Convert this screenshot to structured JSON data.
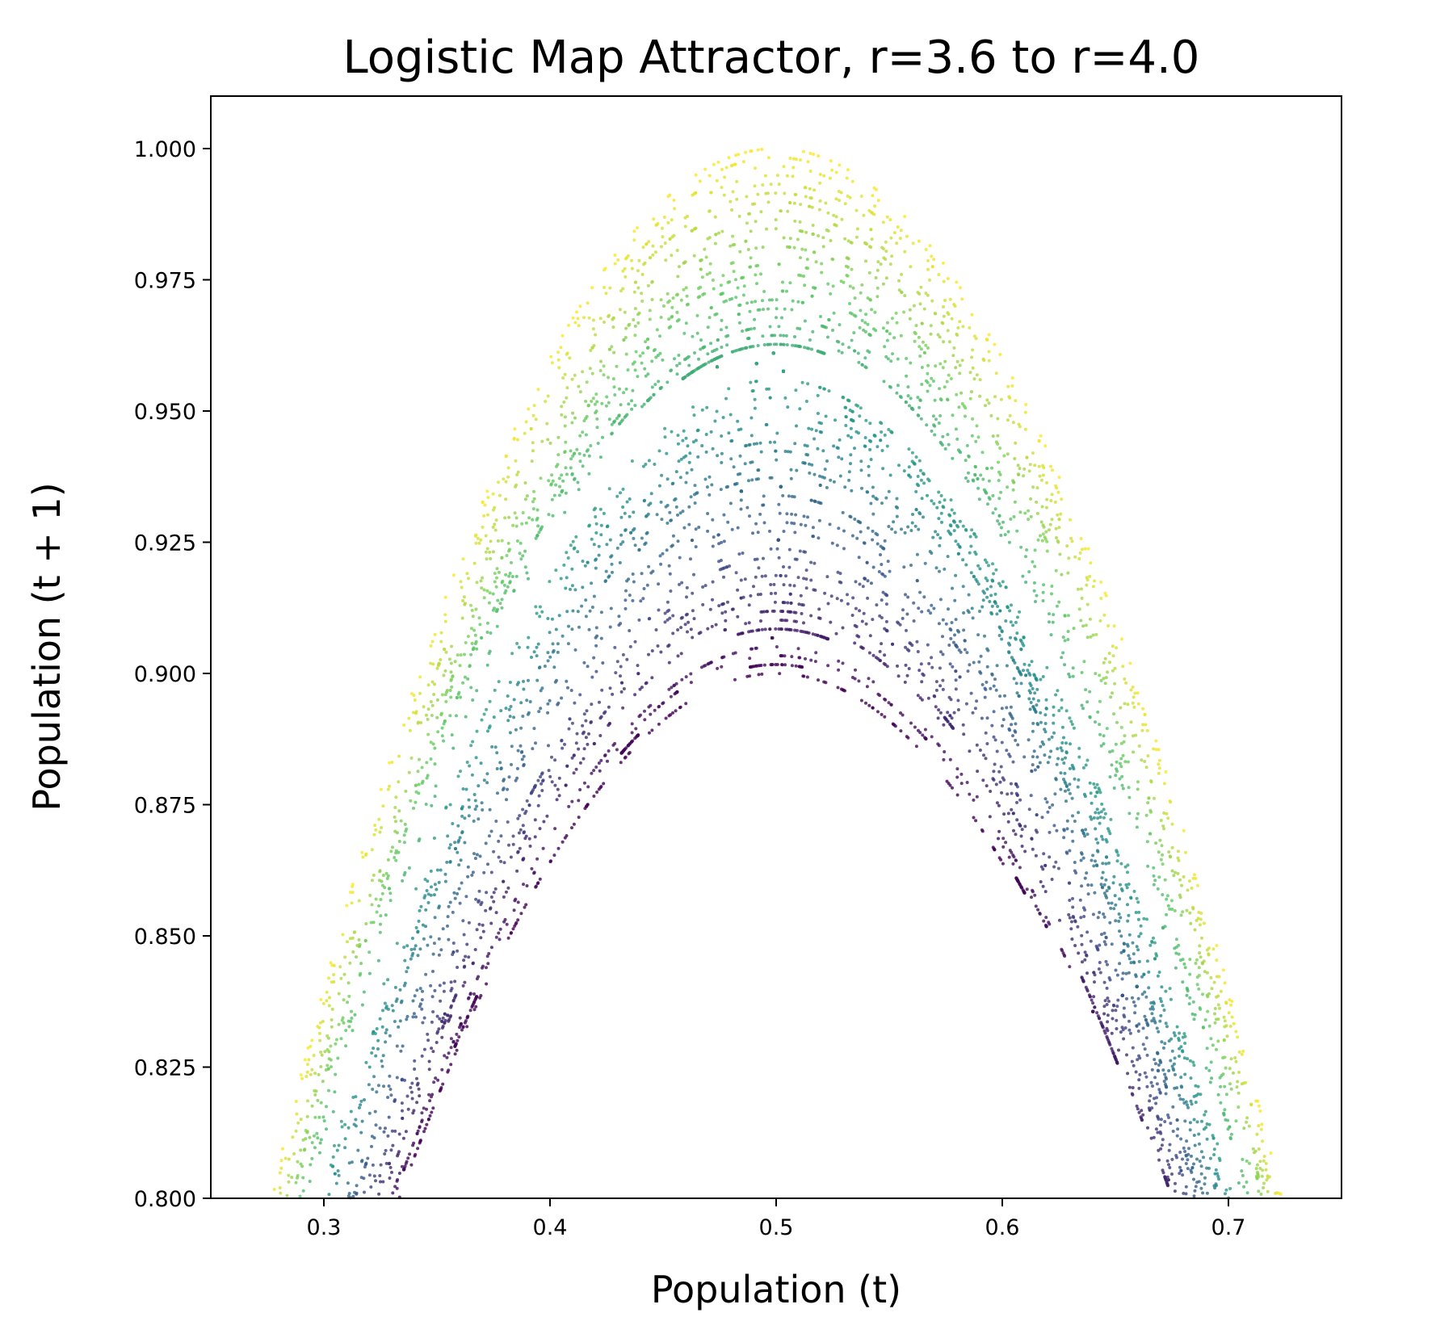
{
  "chart_data": {
    "type": "scatter",
    "title": "Logistic Map Attractor, r=3.6 to r=4.0",
    "xlabel": "Population (t)",
    "ylabel": "Population (t + 1)",
    "xlim": [
      0.25,
      0.75
    ],
    "ylim": [
      0.8,
      1.01
    ],
    "xticks": [
      0.3,
      0.4,
      0.5,
      0.6,
      0.7
    ],
    "xtick_labels": [
      "0.3",
      "0.4",
      "0.5",
      "0.6",
      "0.7"
    ],
    "yticks": [
      0.8,
      0.825,
      0.85,
      0.875,
      0.9,
      0.925,
      0.95,
      0.975,
      1.0
    ],
    "ytick_labels": [
      "0.800",
      "0.825",
      "0.850",
      "0.875",
      "0.900",
      "0.925",
      "0.950",
      "0.975",
      "1.000"
    ],
    "r_range": [
      3.6,
      4.0
    ],
    "relation": "y = r * x * (1 - x)",
    "colormap": [
      "#440154",
      "#3b528b",
      "#21918c",
      "#5ec962",
      "#fde725"
    ],
    "grid": false,
    "legend": "none"
  }
}
